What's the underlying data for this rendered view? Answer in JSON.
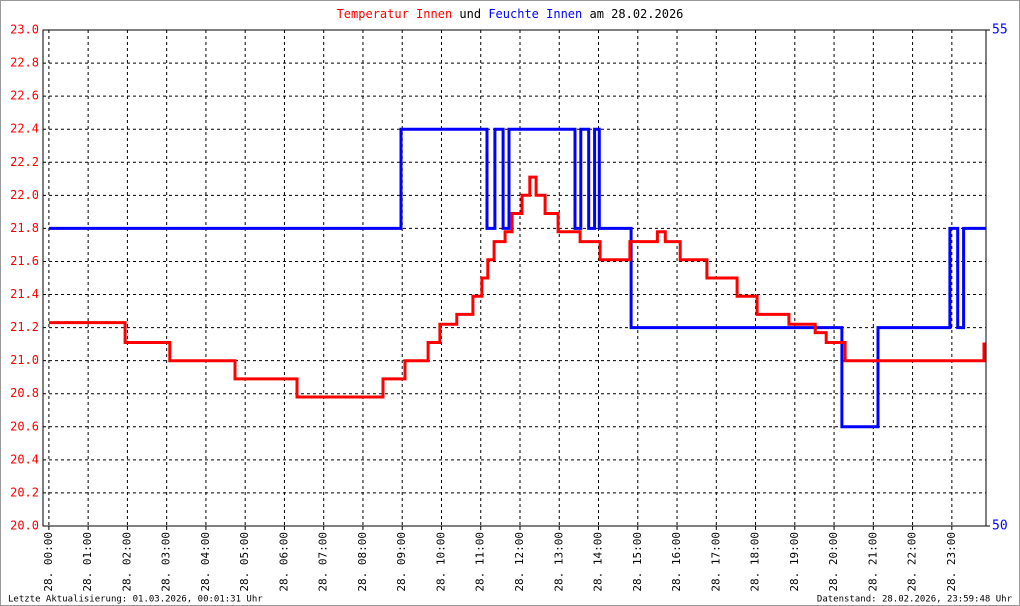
{
  "chart_data": {
    "type": "line",
    "title_connector": "und",
    "title_date": "am 28.02.2026",
    "footer_left": "Letzte Aktualisierung: 01.03.2026, 00:01:31 Uhr",
    "footer_right": "Datenstand: 28.02.2026, 23:59:48 Uhr",
    "xlim": [
      -0.15,
      23.87
    ],
    "xticks": [
      {
        "value": 0,
        "label": "28. 00:00"
      },
      {
        "value": 1,
        "label": "28. 01:00"
      },
      {
        "value": 2,
        "label": "28. 02:00"
      },
      {
        "value": 3,
        "label": "28. 03:00"
      },
      {
        "value": 4,
        "label": "28. 04:00"
      },
      {
        "value": 5,
        "label": "28. 05:00"
      },
      {
        "value": 6,
        "label": "28. 06:00"
      },
      {
        "value": 7,
        "label": "28. 07:00"
      },
      {
        "value": 8,
        "label": "28. 08:00"
      },
      {
        "value": 9,
        "label": "28. 09:00"
      },
      {
        "value": 10,
        "label": "28. 10:00"
      },
      {
        "value": 11,
        "label": "28. 11:00"
      },
      {
        "value": 12,
        "label": "28. 12:00"
      },
      {
        "value": 13,
        "label": "28. 13:00"
      },
      {
        "value": 14,
        "label": "28. 14:00"
      },
      {
        "value": 15,
        "label": "28. 15:00"
      },
      {
        "value": 16,
        "label": "28. 16:00"
      },
      {
        "value": 17,
        "label": "28. 17:00"
      },
      {
        "value": 18,
        "label": "28. 18:00"
      },
      {
        "value": 19,
        "label": "28. 19:00"
      },
      {
        "value": 20,
        "label": "28. 20:00"
      },
      {
        "value": 21,
        "label": "28. 21:00"
      },
      {
        "value": 22,
        "label": "28. 22:00"
      },
      {
        "value": 23,
        "label": "28. 23:00"
      }
    ],
    "ylim": [
      20,
      23
    ],
    "yticks": [
      {
        "value": 20,
        "label": "20.0"
      },
      20.2,
      20.4,
      20.6,
      20.8,
      {
        "value": 21,
        "label": "21.0"
      },
      21.2,
      21.4,
      21.6,
      21.8,
      {
        "value": 22,
        "label": "22.0"
      },
      22.2,
      22.4,
      22.6,
      22.8,
      {
        "value": 23,
        "label": "23.0"
      }
    ],
    "y2lim": [
      50,
      55
    ],
    "y2ticks": [
      50,
      55
    ],
    "grid": true,
    "series": [
      {
        "name": "Temperatur Innen",
        "color": "#ff0000",
        "x": [
          0,
          1.94,
          1.94,
          3.08,
          3.08,
          4.74,
          4.74,
          6.32,
          6.32,
          8.51,
          8.51,
          9.07,
          9.07,
          9.66,
          9.66,
          9.96,
          9.96,
          10.39,
          10.39,
          10.8,
          10.8,
          11.03,
          11.03,
          11.18,
          11.18,
          11.34,
          11.34,
          11.62,
          11.62,
          11.8,
          11.8,
          12.05,
          12.05,
          12.25,
          12.25,
          12.41,
          12.41,
          12.64,
          12.64,
          12.97,
          12.97,
          13.53,
          13.53,
          14.04,
          14.04,
          14.8,
          14.8,
          15.5,
          15.5,
          15.7,
          15.7,
          16.08,
          16.08,
          16.76,
          16.76,
          17.53,
          17.53,
          18.04,
          18.04,
          18.85,
          18.85,
          19.52,
          19.52,
          19.8,
          19.8,
          20.28,
          20.28,
          23.82,
          23.82
        ],
        "values": [
          21.23,
          21.23,
          21.11,
          21.11,
          21.0,
          21.0,
          20.89,
          20.89,
          20.78,
          20.78,
          20.89,
          20.89,
          21.0,
          21.0,
          21.11,
          21.11,
          21.22,
          21.22,
          21.28,
          21.28,
          21.39,
          21.39,
          21.5,
          21.5,
          21.61,
          21.61,
          21.72,
          21.72,
          21.78,
          21.78,
          21.89,
          21.89,
          22.0,
          22.0,
          22.11,
          22.11,
          22.0,
          22.0,
          21.89,
          21.89,
          21.78,
          21.78,
          21.72,
          21.72,
          21.61,
          21.61,
          21.72,
          21.72,
          21.78,
          21.78,
          21.72,
          21.72,
          21.61,
          21.61,
          21.5,
          21.5,
          21.39,
          21.39,
          21.28,
          21.28,
          21.22,
          21.22,
          21.17,
          21.17,
          21.11,
          21.11,
          21.0,
          21.0,
          21.11
        ]
      },
      {
        "name": "Feuchte Innen",
        "color": "#0000ff",
        "axis": "y2",
        "x": [
          0,
          8.97,
          8.97,
          11.16,
          11.16,
          11.36,
          11.36,
          11.57,
          11.57,
          11.72,
          11.72,
          13.4,
          13.4,
          13.55,
          13.55,
          13.75,
          13.75,
          13.9,
          13.9,
          14.02,
          14.02,
          14.83,
          14.83,
          20.2,
          20.2,
          21.12,
          21.12,
          22.95,
          22.95,
          23.15,
          23.15,
          23.3,
          23.3,
          23.87
        ],
        "values": [
          53,
          53,
          54,
          54,
          53,
          53,
          54,
          54,
          53,
          53,
          54,
          54,
          53,
          53,
          54,
          54,
          53,
          53,
          54,
          54,
          53,
          53,
          52,
          52,
          51,
          51,
          52,
          52,
          53,
          53,
          52,
          52,
          53,
          53
        ]
      }
    ]
  }
}
